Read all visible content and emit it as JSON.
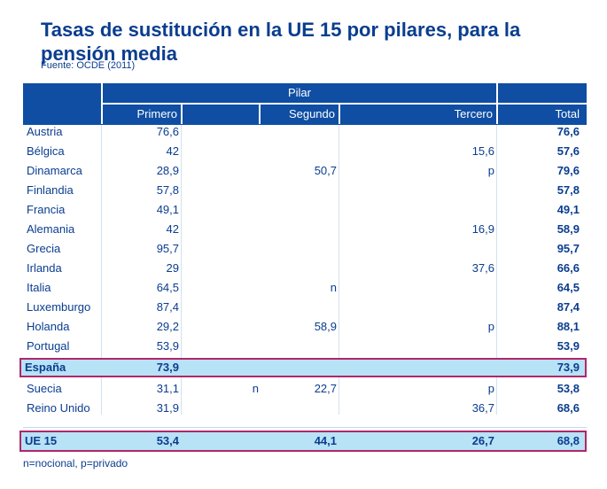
{
  "title": "Tasas de sustitución en la UE 15 por pilares, para la pensión media",
  "source": "Fuente: OCDE (2011)",
  "header": {
    "group": "Pilar",
    "columns": [
      "Primero",
      "Segundo",
      "Tercero",
      "Total"
    ]
  },
  "rows": [
    {
      "country": "Austria",
      "primero": "76,6",
      "segundo_note": "",
      "segundo": "",
      "tercero": "",
      "total": "76,6"
    },
    {
      "country": "Bélgica",
      "primero": "42",
      "segundo_note": "",
      "segundo": "",
      "tercero": "15,6",
      "total": "57,6"
    },
    {
      "country": "Dinamarca",
      "primero": "28,9",
      "segundo_note": "",
      "segundo": "50,7",
      "tercero": "p",
      "total": "79,6"
    },
    {
      "country": "Finlandia",
      "primero": "57,8",
      "segundo_note": "",
      "segundo": "",
      "tercero": "",
      "total": "57,8"
    },
    {
      "country": "Francia",
      "primero": "49,1",
      "segundo_note": "",
      "segundo": "",
      "tercero": "",
      "total": "49,1"
    },
    {
      "country": "Alemania",
      "primero": "42",
      "segundo_note": "",
      "segundo": "",
      "tercero": "16,9",
      "total": "58,9"
    },
    {
      "country": "Grecia",
      "primero": "95,7",
      "segundo_note": "",
      "segundo": "",
      "tercero": "",
      "total": "95,7"
    },
    {
      "country": "Irlanda",
      "primero": "29",
      "segundo_note": "",
      "segundo": "",
      "tercero": "37,6",
      "total": "66,6"
    },
    {
      "country": "Italia",
      "primero": "64,5",
      "segundo_note": "",
      "segundo": "n",
      "tercero": "",
      "total": "64,5"
    },
    {
      "country": "Luxemburgo",
      "primero": "87,4",
      "segundo_note": "",
      "segundo": "",
      "tercero": "",
      "total": "87,4"
    },
    {
      "country": "Holanda",
      "primero": "29,2",
      "segundo_note": "",
      "segundo": "58,9",
      "tercero": "p",
      "total": "88,1"
    },
    {
      "country": "Portugal",
      "primero": "53,9",
      "segundo_note": "",
      "segundo": "",
      "tercero": "",
      "total": "53,9"
    },
    {
      "country": "España",
      "primero": "73,9",
      "segundo_note": "",
      "segundo": "",
      "tercero": "",
      "total": "73,9",
      "highlight": true
    },
    {
      "country": "Suecia",
      "primero": "31,1",
      "segundo_note": "n",
      "segundo": "22,7",
      "tercero": "p",
      "total": "53,8"
    },
    {
      "country": "Reino Unido",
      "primero": "31,9",
      "segundo_note": "",
      "segundo": "",
      "tercero": "36,7",
      "total": "68,6"
    }
  ],
  "summary": {
    "country": "UE 15",
    "primero": "53,4",
    "segundo_note": "",
    "segundo": "44,1",
    "tercero": "26,7",
    "total": "68,8"
  },
  "footnote": "n=nocional, p=privado"
}
